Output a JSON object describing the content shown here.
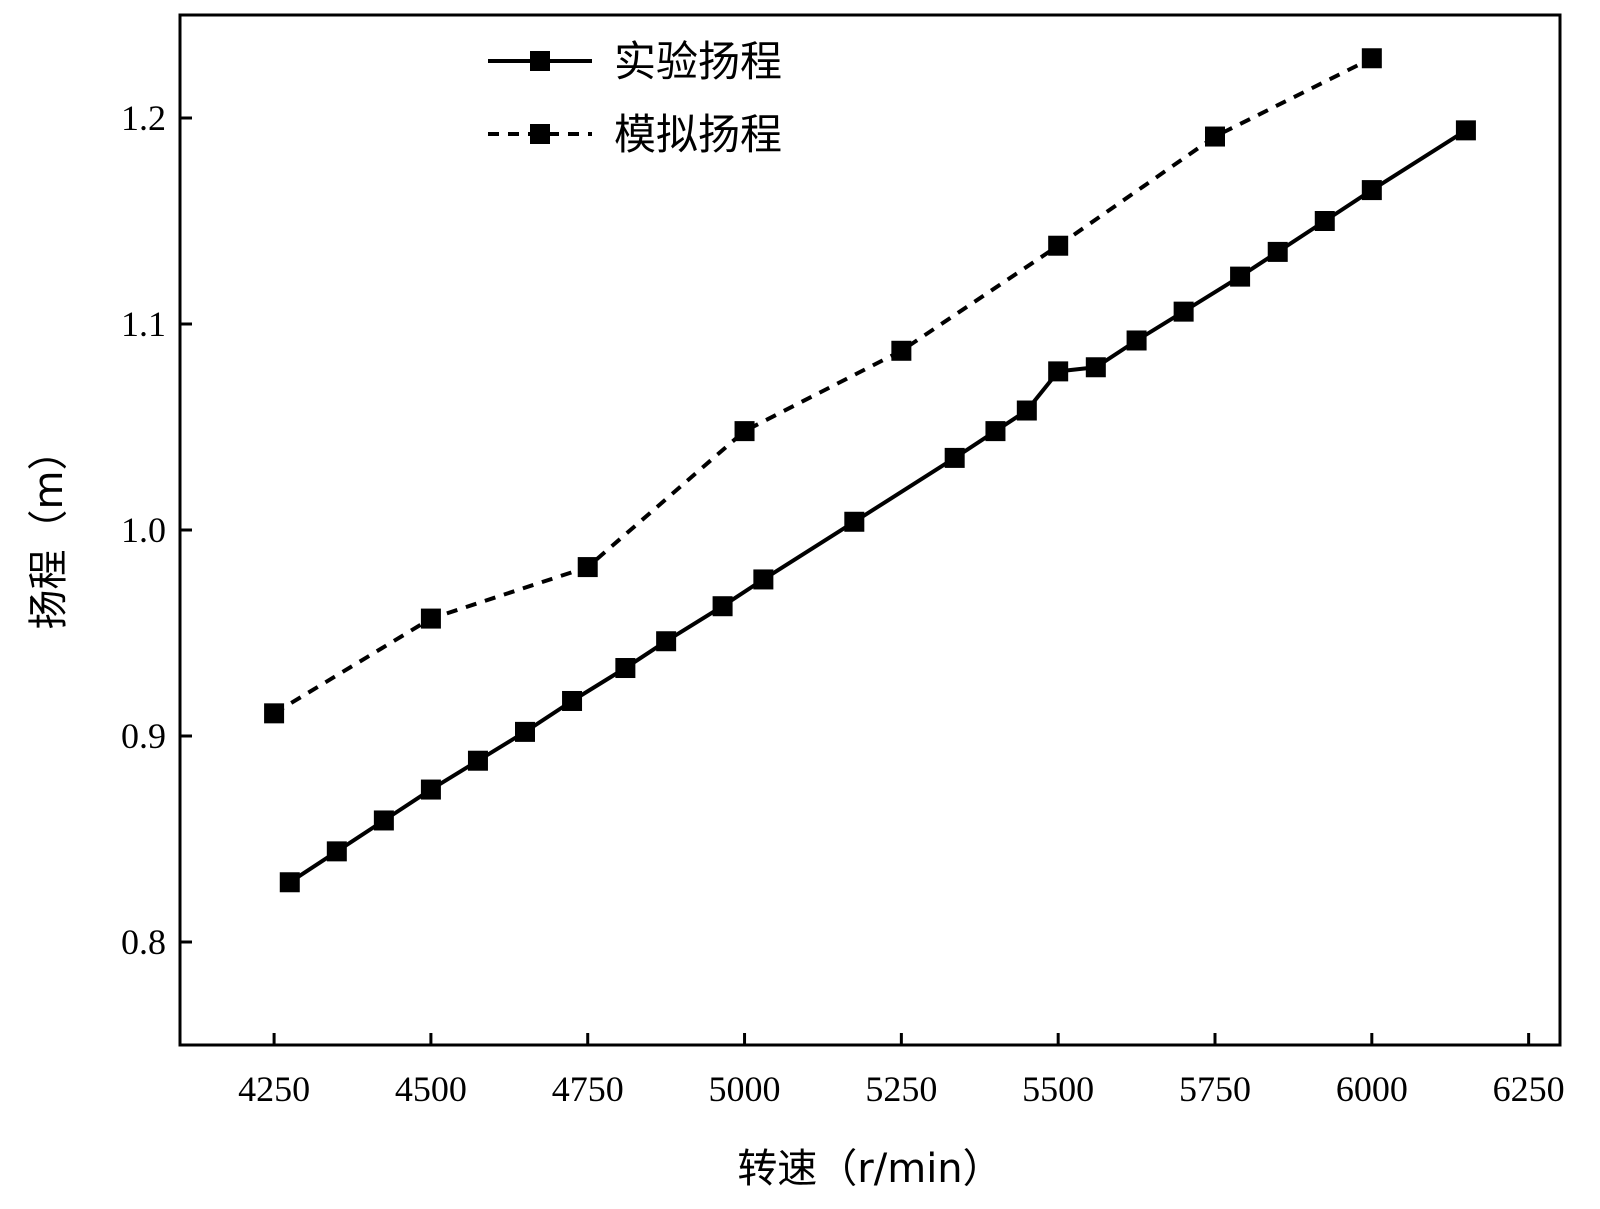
{
  "chart_data": {
    "type": "line",
    "xlabel": "转速（r/min）",
    "ylabel": "扬程（m）",
    "xlim": [
      4100,
      6300
    ],
    "ylim": [
      0.75,
      1.25
    ],
    "xticks": [
      4250,
      4500,
      4750,
      5000,
      5250,
      5500,
      5750,
      6000,
      6250
    ],
    "yticks": [
      0.8,
      0.9,
      1.0,
      1.1,
      1.2
    ],
    "xtick_labels": [
      "4250",
      "4500",
      "4750",
      "5000",
      "5250",
      "5500",
      "5750",
      "6000",
      "6250"
    ],
    "ytick_labels": [
      "0.8",
      "0.9",
      "1.0",
      "1.1",
      "1.2"
    ],
    "legend_position": "top-center",
    "grid": false,
    "series": [
      {
        "name": "实验扬程",
        "line_style": "solid",
        "marker": "square",
        "color": "#000000",
        "points": [
          [
            4275,
            0.829
          ],
          [
            4350,
            0.844
          ],
          [
            4425,
            0.859
          ],
          [
            4500,
            0.874
          ],
          [
            4575,
            0.888
          ],
          [
            4650,
            0.902
          ],
          [
            4725,
            0.917
          ],
          [
            4810,
            0.933
          ],
          [
            4875,
            0.946
          ],
          [
            4965,
            0.963
          ],
          [
            5030,
            0.976
          ],
          [
            5175,
            1.004
          ],
          [
            5335,
            1.035
          ],
          [
            5400,
            1.048
          ],
          [
            5450,
            1.058
          ],
          [
            5500,
            1.077
          ],
          [
            5560,
            1.079
          ],
          [
            5625,
            1.092
          ],
          [
            5700,
            1.106
          ],
          [
            5790,
            1.123
          ],
          [
            5850,
            1.135
          ],
          [
            5925,
            1.15
          ],
          [
            6000,
            1.165
          ],
          [
            6150,
            1.194
          ]
        ]
      },
      {
        "name": "模拟扬程",
        "line_style": "dashed",
        "marker": "square",
        "color": "#000000",
        "points": [
          [
            4250,
            0.911
          ],
          [
            4500,
            0.957
          ],
          [
            4750,
            0.982
          ],
          [
            5000,
            1.048
          ],
          [
            5250,
            1.087
          ],
          [
            5500,
            1.138
          ],
          [
            5750,
            1.191
          ],
          [
            6000,
            1.229
          ]
        ]
      }
    ]
  }
}
